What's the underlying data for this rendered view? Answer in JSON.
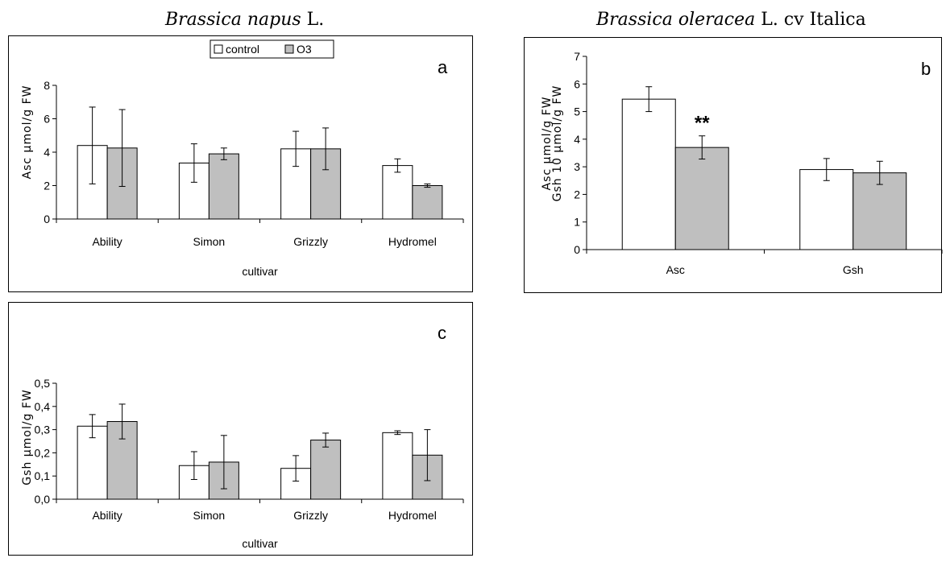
{
  "titles": {
    "left": {
      "species": "Brassica napus",
      "author": " L."
    },
    "right": {
      "species": "Brassica oleracea",
      "author": " L. cv Italica"
    }
  },
  "colors": {
    "control": "#ffffff",
    "O3": "#bfbfbf"
  },
  "legend": {
    "control": "control",
    "O3": "O3"
  },
  "chart_data": [
    {
      "id": "a",
      "panel_letter": "a",
      "type": "bar",
      "categories": [
        "Ability",
        "Simon",
        "Grizzly",
        "Hydromel"
      ],
      "series": [
        {
          "name": "control",
          "values": [
            4.4,
            3.35,
            4.2,
            3.2
          ],
          "errors": [
            2.3,
            1.15,
            1.05,
            0.4
          ]
        },
        {
          "name": "O3",
          "values": [
            4.25,
            3.9,
            4.2,
            2.0
          ],
          "errors": [
            2.3,
            0.35,
            1.25,
            0.1
          ]
        }
      ],
      "xlabel": "cultivar",
      "ylabel": [
        "Asc µmol/g FW"
      ],
      "ylim": [
        0,
        8
      ],
      "yticks": [
        "0",
        "2",
        "4",
        "6",
        "8"
      ],
      "legend_position": "top-center",
      "annotations": []
    },
    {
      "id": "b",
      "panel_letter": "b",
      "type": "bar",
      "categories": [
        "Asc",
        "Gsh"
      ],
      "series": [
        {
          "name": "control",
          "values": [
            5.45,
            2.9
          ],
          "errors": [
            0.45,
            0.4
          ]
        },
        {
          "name": "O3",
          "values": [
            3.7,
            2.78
          ],
          "errors": [
            0.42,
            0.42
          ]
        }
      ],
      "xlabel": "",
      "ylabel": [
        "Asc µmol/g FW",
        "Gsh 10 µmol/g FW"
      ],
      "ylim": [
        0,
        7
      ],
      "yticks": [
        "0",
        "1",
        "2",
        "3",
        "4",
        "5",
        "6",
        "7"
      ],
      "annotations": [
        {
          "text": "**",
          "category": 0,
          "series": 1
        }
      ]
    },
    {
      "id": "c",
      "panel_letter": "c",
      "type": "bar",
      "categories": [
        "Ability",
        "Simon",
        "Grizzly",
        "Hydromel"
      ],
      "series": [
        {
          "name": "control",
          "values": [
            0.315,
            0.145,
            0.133,
            0.287
          ],
          "errors": [
            0.05,
            0.06,
            0.055,
            0.008
          ]
        },
        {
          "name": "O3",
          "values": [
            0.335,
            0.16,
            0.255,
            0.19
          ],
          "errors": [
            0.075,
            0.115,
            0.03,
            0.11
          ]
        }
      ],
      "xlabel": "cultivar",
      "ylabel": [
        "Gsh µmol/g FW"
      ],
      "ylim": [
        0,
        0.5
      ],
      "yticks": [
        "0,0",
        "0,1",
        "0,2",
        "0,3",
        "0,4",
        "0,5"
      ],
      "annotations": []
    }
  ]
}
